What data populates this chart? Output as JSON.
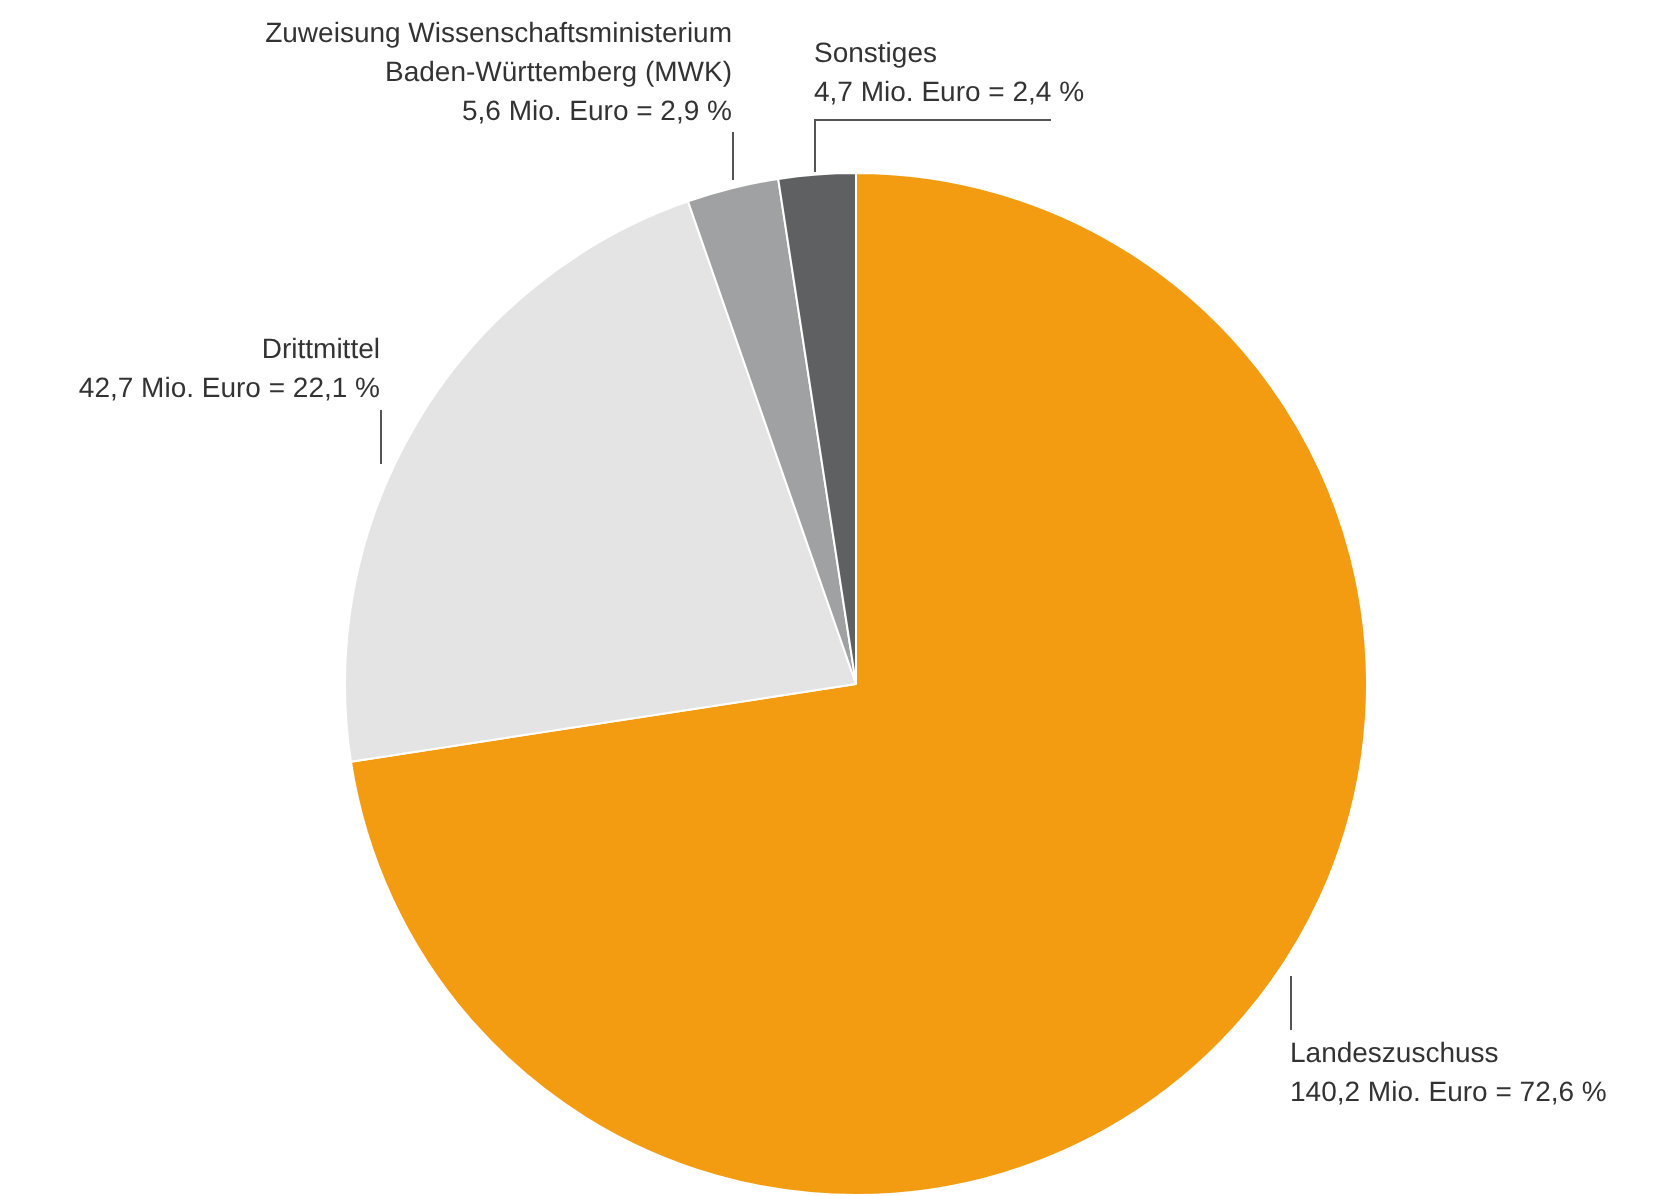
{
  "chart_data": {
    "type": "pie",
    "categories": [
      "Landeszuschuss",
      "Drittmittel",
      "Zuweisung Wissenschaftsministerium Baden-Württemberg (MWK)",
      "Sonstiges"
    ],
    "values": [
      140.2,
      42.7,
      5.6,
      4.7
    ],
    "value_labels": [
      "140,2 Mio. Euro = 72,6 %",
      "42,7 Mio. Euro = 22,1 %",
      "5,6 Mio. Euro = 2,9 %",
      "4,7 Mio. Euro = 2,4 %"
    ],
    "colors": [
      "#f39c12",
      "#e3e4e3",
      "#a0a1a2",
      "#5f6062"
    ],
    "legend": false
  }
}
